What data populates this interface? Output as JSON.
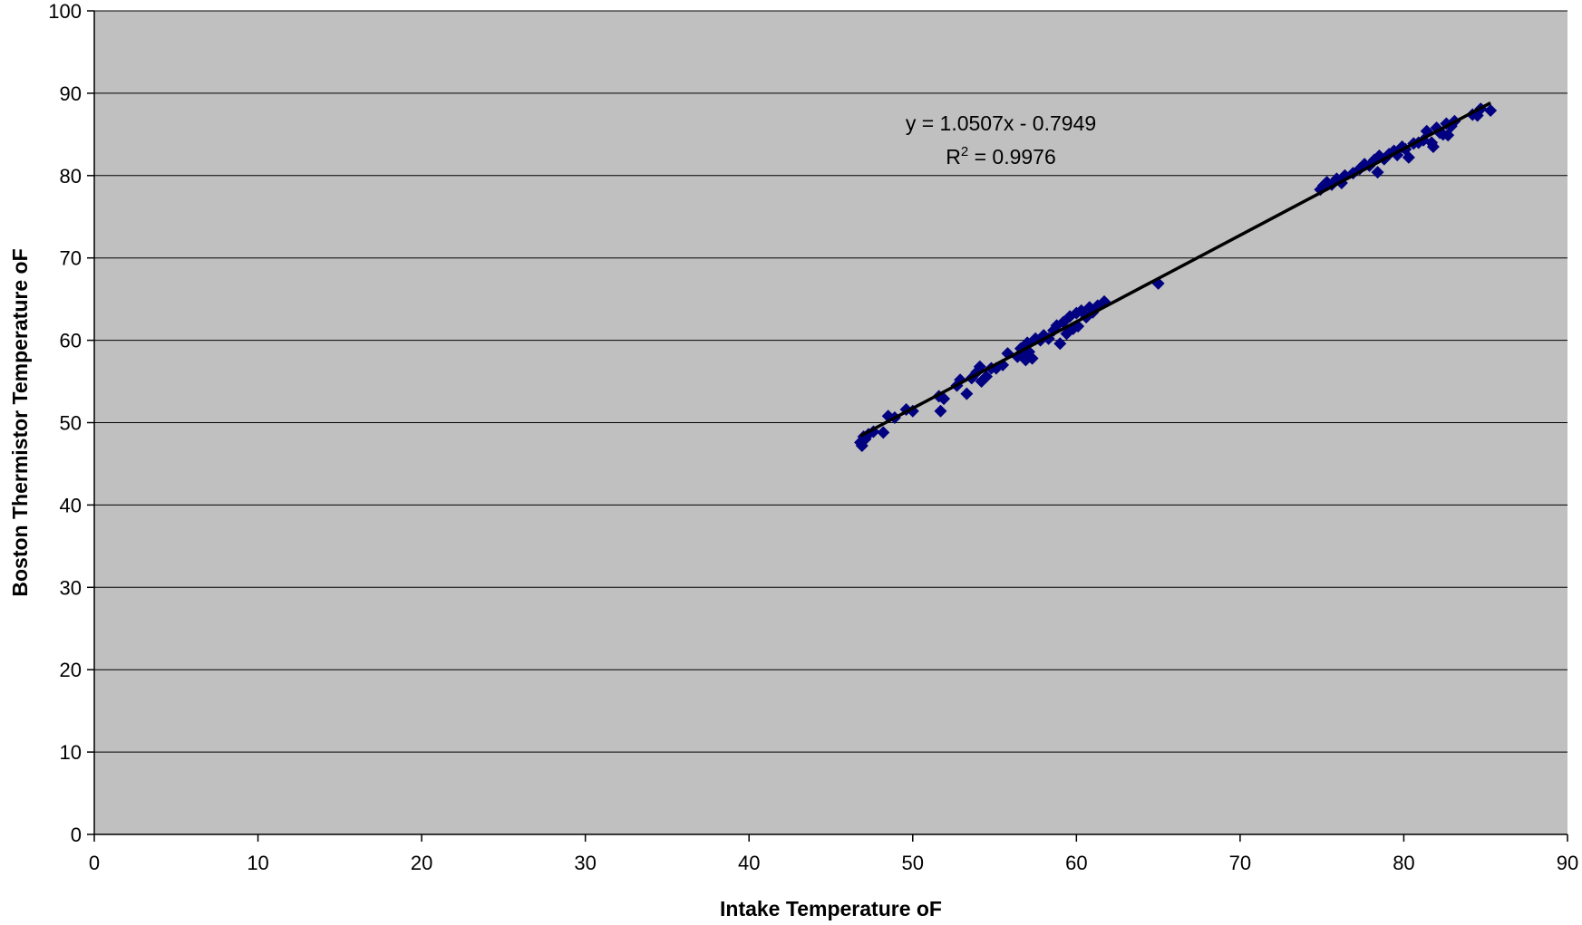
{
  "chart_data": {
    "type": "scatter",
    "xlabel": "Intake Temperature oF",
    "ylabel": "Boston Thermistor Temperature oF",
    "xlim": [
      0,
      90
    ],
    "ylim": [
      0,
      100
    ],
    "x_ticks": [
      "0",
      "10",
      "20",
      "30",
      "40",
      "50",
      "60",
      "70",
      "80",
      "90"
    ],
    "y_ticks": [
      "0",
      "10",
      "20",
      "30",
      "40",
      "50",
      "60",
      "70",
      "80",
      "90",
      "100"
    ],
    "grid": "horizontal",
    "plot_background": "#c0c0c0",
    "marker_color": "#000080",
    "marker_shape": "diamond",
    "trendline": {
      "slope": 1.0507,
      "intercept": -0.7949,
      "x_range": [
        46.8,
        85.3
      ],
      "color": "#000000",
      "equation": "y = 1.0507x - 0.7949",
      "r2_prefix": "R",
      "r2_sup": "2",
      "r2_value": " = 0.9976"
    },
    "series": [
      {
        "points": [
          [
            46.8,
            47.6
          ],
          [
            46.9,
            47.2
          ],
          [
            47.0,
            48.3
          ],
          [
            47.1,
            48.0
          ],
          [
            47.3,
            48.6
          ],
          [
            47.6,
            48.9
          ],
          [
            48.2,
            48.8
          ],
          [
            48.5,
            50.8
          ],
          [
            48.9,
            50.6
          ],
          [
            49.6,
            51.6
          ],
          [
            50.0,
            51.4
          ],
          [
            51.6,
            53.2
          ],
          [
            51.7,
            51.4
          ],
          [
            51.9,
            52.9
          ],
          [
            52.7,
            54.5
          ],
          [
            52.9,
            55.2
          ],
          [
            53.3,
            53.5
          ],
          [
            53.6,
            55.4
          ],
          [
            53.9,
            56.1
          ],
          [
            54.1,
            56.8
          ],
          [
            54.2,
            55.0
          ],
          [
            54.5,
            55.6
          ],
          [
            54.8,
            56.6
          ],
          [
            55.1,
            56.6
          ],
          [
            55.5,
            57.0
          ],
          [
            55.8,
            58.4
          ],
          [
            56.4,
            58.0
          ],
          [
            56.6,
            59.0
          ],
          [
            56.8,
            58.1
          ],
          [
            56.9,
            57.6
          ],
          [
            57.0,
            59.7
          ],
          [
            57.1,
            58.6
          ],
          [
            57.3,
            57.8
          ],
          [
            57.5,
            60.2
          ],
          [
            57.8,
            60.0
          ],
          [
            58.0,
            60.6
          ],
          [
            58.3,
            60.2
          ],
          [
            58.6,
            61.2
          ],
          [
            58.8,
            61.8
          ],
          [
            59.0,
            59.6
          ],
          [
            59.2,
            62.2
          ],
          [
            59.4,
            60.8
          ],
          [
            59.6,
            62.9
          ],
          [
            59.8,
            61.4
          ],
          [
            60.0,
            63.3
          ],
          [
            60.1,
            61.7
          ],
          [
            60.3,
            63.6
          ],
          [
            60.6,
            62.8
          ],
          [
            60.8,
            64.0
          ],
          [
            61.0,
            63.4
          ],
          [
            61.3,
            64.2
          ],
          [
            61.7,
            64.7
          ],
          [
            65.0,
            66.9
          ],
          [
            74.9,
            78.3
          ],
          [
            75.1,
            78.8
          ],
          [
            75.3,
            79.2
          ],
          [
            75.6,
            78.9
          ],
          [
            75.9,
            79.6
          ],
          [
            76.2,
            79.1
          ],
          [
            76.4,
            80.0
          ],
          [
            76.9,
            80.3
          ],
          [
            77.3,
            80.8
          ],
          [
            77.6,
            81.4
          ],
          [
            77.9,
            81.2
          ],
          [
            78.2,
            81.9
          ],
          [
            78.4,
            80.4
          ],
          [
            78.5,
            82.4
          ],
          [
            78.8,
            82.0
          ],
          [
            79.1,
            82.6
          ],
          [
            79.4,
            83.0
          ],
          [
            79.6,
            82.5
          ],
          [
            79.9,
            83.5
          ],
          [
            80.1,
            83.2
          ],
          [
            80.3,
            82.2
          ],
          [
            80.6,
            83.9
          ],
          [
            80.9,
            84.0
          ],
          [
            81.2,
            84.3
          ],
          [
            81.4,
            85.4
          ],
          [
            81.7,
            84.0
          ],
          [
            81.8,
            83.5
          ],
          [
            82.0,
            85.8
          ],
          [
            82.2,
            85.2
          ],
          [
            82.4,
            85.0
          ],
          [
            82.6,
            86.3
          ],
          [
            82.7,
            84.9
          ],
          [
            82.9,
            86.0
          ],
          [
            83.1,
            86.6
          ],
          [
            84.2,
            87.4
          ],
          [
            84.5,
            87.3
          ],
          [
            84.7,
            88.1
          ],
          [
            85.3,
            87.9
          ]
        ]
      }
    ]
  }
}
